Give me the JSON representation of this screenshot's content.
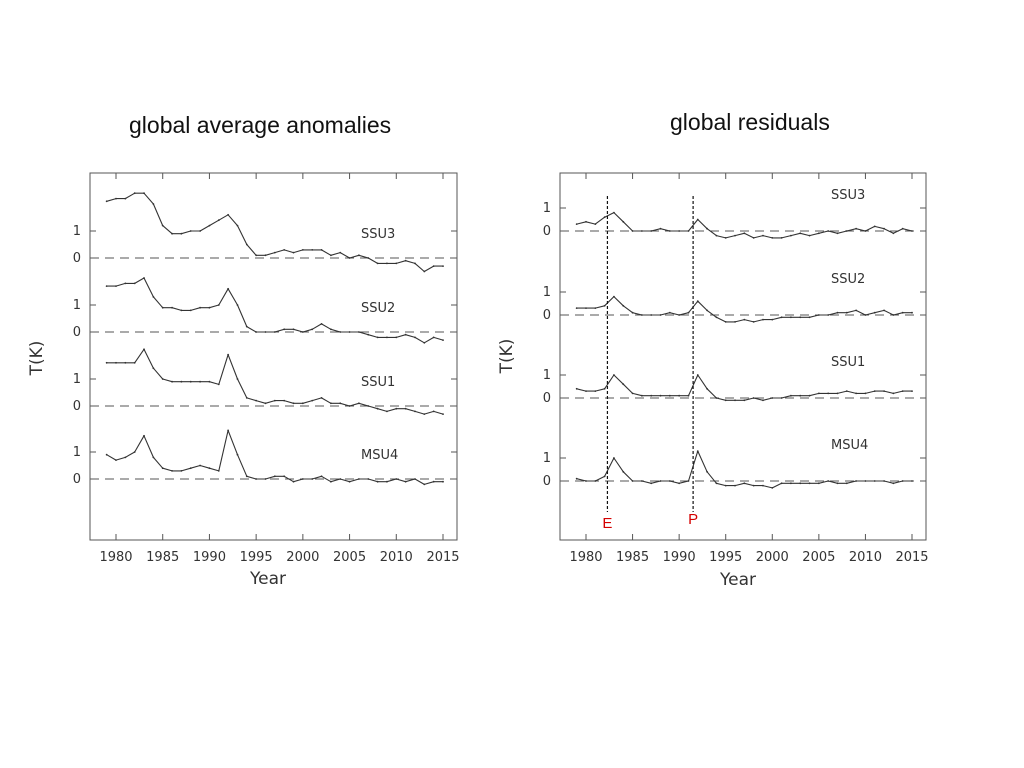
{
  "slide": {
    "left_title": "global average anomalies",
    "right_title": "global residuals"
  },
  "chart_data": [
    {
      "type": "line",
      "title": "global average anomalies",
      "xlabel": "Year",
      "ylabel": "T(K)",
      "xlim": [
        1977.5,
        2015.5
      ],
      "x_ticks": [
        1980,
        1985,
        1990,
        1995,
        2000,
        2005,
        2010,
        2015
      ],
      "zero_line": "dashed",
      "series": [
        {
          "name": "SSU3",
          "y_ticks": [
            0,
            1
          ],
          "x": [
            1979,
            1980,
            1981,
            1982,
            1983,
            1984,
            1985,
            1986,
            1987,
            1988,
            1989,
            1990,
            1991,
            1992,
            1993,
            1994,
            1995,
            1996,
            1997,
            1998,
            1999,
            2000,
            2001,
            2002,
            2003,
            2004,
            2005,
            2006,
            2007,
            2008,
            2009,
            2010,
            2011,
            2012,
            2013,
            2014,
            2015
          ],
          "y": [
            2.1,
            2.2,
            2.2,
            2.4,
            2.4,
            2.0,
            1.2,
            0.9,
            0.9,
            1.0,
            1.0,
            1.2,
            1.4,
            1.6,
            1.2,
            0.5,
            0.1,
            0.1,
            0.2,
            0.3,
            0.2,
            0.3,
            0.3,
            0.3,
            0.1,
            0.2,
            0.0,
            0.1,
            0.0,
            -0.2,
            -0.2,
            -0.2,
            -0.1,
            -0.2,
            -0.5,
            -0.3,
            -0.3
          ]
        },
        {
          "name": "SSU2",
          "y_ticks": [
            0,
            1
          ],
          "x": [
            1979,
            1980,
            1981,
            1982,
            1983,
            1984,
            1985,
            1986,
            1987,
            1988,
            1989,
            1990,
            1991,
            1992,
            1993,
            1994,
            1995,
            1996,
            1997,
            1998,
            1999,
            2000,
            2001,
            2002,
            2003,
            2004,
            2005,
            2006,
            2007,
            2008,
            2009,
            2010,
            2011,
            2012,
            2013,
            2014,
            2015
          ],
          "y": [
            1.7,
            1.7,
            1.8,
            1.8,
            2.0,
            1.3,
            0.9,
            0.9,
            0.8,
            0.8,
            0.9,
            0.9,
            1.0,
            1.6,
            1.0,
            0.2,
            0.0,
            0.0,
            0.0,
            0.1,
            0.1,
            0.0,
            0.1,
            0.3,
            0.1,
            0.0,
            0.0,
            0.0,
            -0.1,
            -0.2,
            -0.2,
            -0.2,
            -0.1,
            -0.2,
            -0.4,
            -0.2,
            -0.3
          ]
        },
        {
          "name": "SSU1",
          "y_ticks": [
            0,
            1
          ],
          "x": [
            1979,
            1980,
            1981,
            1982,
            1983,
            1984,
            1985,
            1986,
            1987,
            1988,
            1989,
            1990,
            1991,
            1992,
            1993,
            1994,
            1995,
            1996,
            1997,
            1998,
            1999,
            2000,
            2001,
            2002,
            2003,
            2004,
            2005,
            2006,
            2007,
            2008,
            2009,
            2010,
            2011,
            2012,
            2013,
            2014,
            2015
          ],
          "y": [
            1.6,
            1.6,
            1.6,
            1.6,
            2.1,
            1.4,
            1.0,
            0.9,
            0.9,
            0.9,
            0.9,
            0.9,
            0.8,
            1.9,
            1.0,
            0.3,
            0.2,
            0.1,
            0.2,
            0.2,
            0.1,
            0.1,
            0.2,
            0.3,
            0.1,
            0.1,
            0.0,
            0.1,
            0.0,
            -0.1,
            -0.2,
            -0.1,
            -0.1,
            -0.2,
            -0.3,
            -0.2,
            -0.3
          ]
        },
        {
          "name": "MSU4",
          "y_ticks": [
            0,
            1
          ],
          "x": [
            1979,
            1980,
            1981,
            1982,
            1983,
            1984,
            1985,
            1986,
            1987,
            1988,
            1989,
            1990,
            1991,
            1992,
            1993,
            1994,
            1995,
            1996,
            1997,
            1998,
            1999,
            2000,
            2001,
            2002,
            2003,
            2004,
            2005,
            2006,
            2007,
            2008,
            2009,
            2010,
            2011,
            2012,
            2013,
            2014,
            2015
          ],
          "y": [
            0.9,
            0.7,
            0.8,
            1.0,
            1.6,
            0.8,
            0.4,
            0.3,
            0.3,
            0.4,
            0.5,
            0.4,
            0.3,
            1.8,
            0.9,
            0.1,
            0.0,
            0.0,
            0.1,
            0.1,
            -0.1,
            0.0,
            0.0,
            0.1,
            -0.1,
            0.0,
            -0.1,
            0.0,
            0.0,
            -0.1,
            -0.1,
            0.0,
            -0.1,
            0.0,
            -0.2,
            -0.1,
            -0.1
          ]
        }
      ]
    },
    {
      "type": "line",
      "title": "global residuals",
      "xlabel": "Year",
      "ylabel": "T(K)",
      "xlim": [
        1977.5,
        2015.5
      ],
      "x_ticks": [
        1980,
        1985,
        1990,
        1995,
        2000,
        2005,
        2010,
        2015
      ],
      "zero_line": "dashed",
      "markers": [
        {
          "label": "E",
          "x": 1982.3
        },
        {
          "label": "P",
          "x": 1991.5
        }
      ],
      "series": [
        {
          "name": "SSU3",
          "y_ticks": [
            0,
            1
          ],
          "x": [
            1979,
            1980,
            1981,
            1982,
            1983,
            1984,
            1985,
            1986,
            1987,
            1988,
            1989,
            1990,
            1991,
            1992,
            1993,
            1994,
            1995,
            1996,
            1997,
            1998,
            1999,
            2000,
            2001,
            2002,
            2003,
            2004,
            2005,
            2006,
            2007,
            2008,
            2009,
            2010,
            2011,
            2012,
            2013,
            2014,
            2015
          ],
          "y": [
            0.3,
            0.4,
            0.3,
            0.6,
            0.8,
            0.4,
            0.0,
            0.0,
            0.0,
            0.1,
            0.0,
            0.0,
            0.0,
            0.5,
            0.1,
            -0.2,
            -0.3,
            -0.2,
            -0.1,
            -0.3,
            -0.2,
            -0.3,
            -0.3,
            -0.2,
            -0.1,
            -0.2,
            -0.1,
            0.0,
            -0.1,
            0.0,
            0.1,
            0.0,
            0.2,
            0.1,
            -0.1,
            0.1,
            0.0
          ]
        },
        {
          "name": "SSU2",
          "y_ticks": [
            0,
            1
          ],
          "x": [
            1979,
            1980,
            1981,
            1982,
            1983,
            1984,
            1985,
            1986,
            1987,
            1988,
            1989,
            1990,
            1991,
            1992,
            1993,
            1994,
            1995,
            1996,
            1997,
            1998,
            1999,
            2000,
            2001,
            2002,
            2003,
            2004,
            2005,
            2006,
            2007,
            2008,
            2009,
            2010,
            2011,
            2012,
            2013,
            2014,
            2015
          ],
          "y": [
            0.3,
            0.3,
            0.3,
            0.4,
            0.8,
            0.4,
            0.1,
            0.0,
            0.0,
            0.0,
            0.1,
            0.0,
            0.1,
            0.6,
            0.2,
            -0.1,
            -0.3,
            -0.3,
            -0.2,
            -0.3,
            -0.2,
            -0.2,
            -0.1,
            -0.1,
            -0.1,
            -0.1,
            0.0,
            0.0,
            0.1,
            0.1,
            0.2,
            0.0,
            0.1,
            0.2,
            0.0,
            0.1,
            0.1
          ]
        },
        {
          "name": "SSU1",
          "y_ticks": [
            0,
            1
          ],
          "x": [
            1979,
            1980,
            1981,
            1982,
            1983,
            1984,
            1985,
            1986,
            1987,
            1988,
            1989,
            1990,
            1991,
            1992,
            1993,
            1994,
            1995,
            1996,
            1997,
            1998,
            1999,
            2000,
            2001,
            2002,
            2003,
            2004,
            2005,
            2006,
            2007,
            2008,
            2009,
            2010,
            2011,
            2012,
            2013,
            2014,
            2015
          ],
          "y": [
            0.4,
            0.3,
            0.3,
            0.4,
            1.0,
            0.6,
            0.2,
            0.1,
            0.1,
            0.1,
            0.1,
            0.1,
            0.1,
            1.0,
            0.4,
            0.0,
            -0.1,
            -0.1,
            -0.1,
            0.0,
            -0.1,
            0.0,
            0.0,
            0.1,
            0.1,
            0.1,
            0.2,
            0.2,
            0.2,
            0.3,
            0.2,
            0.2,
            0.3,
            0.3,
            0.2,
            0.3,
            0.3
          ]
        },
        {
          "name": "MSU4",
          "y_ticks": [
            0,
            1
          ],
          "x": [
            1979,
            1980,
            1981,
            1982,
            1983,
            1984,
            1985,
            1986,
            1987,
            1988,
            1989,
            1990,
            1991,
            1992,
            1993,
            1994,
            1995,
            1996,
            1997,
            1998,
            1999,
            2000,
            2001,
            2002,
            2003,
            2004,
            2005,
            2006,
            2007,
            2008,
            2009,
            2010,
            2011,
            2012,
            2013,
            2014,
            2015
          ],
          "y": [
            0.1,
            0.0,
            0.0,
            0.2,
            1.0,
            0.4,
            0.0,
            0.0,
            -0.1,
            0.0,
            0.0,
            -0.1,
            0.0,
            1.3,
            0.4,
            -0.1,
            -0.2,
            -0.2,
            -0.1,
            -0.2,
            -0.2,
            -0.3,
            -0.1,
            -0.1,
            -0.1,
            -0.1,
            -0.1,
            0.0,
            -0.1,
            -0.1,
            0.0,
            0.0,
            0.0,
            0.0,
            -0.1,
            0.0,
            0.0
          ]
        }
      ]
    }
  ]
}
